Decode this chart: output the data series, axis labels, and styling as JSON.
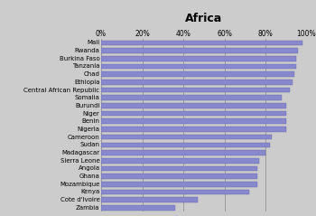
{
  "title": "Africa",
  "countries": [
    "Mali",
    "Rwanda",
    "Burkina Faso",
    "Tanzania",
    "Chad",
    "Ethiopia",
    "Central African Republic",
    "Somalia",
    "Burundi",
    "Niger",
    "Benin",
    "Nigeria",
    "Cameroon",
    "Sudan",
    "Madagascar",
    "Sierra Leone",
    "Angola",
    "Ghana",
    "Mozambique",
    "Kenya",
    "Cote d'Ivoire",
    "Zambia"
  ],
  "values": [
    98,
    96,
    95,
    95,
    94,
    93,
    92,
    88,
    90,
    90,
    90,
    90,
    83,
    82,
    80,
    77,
    76,
    76,
    76,
    72,
    47,
    36
  ],
  "bar_color": "#8888cc",
  "bar_edge_color": "#6666aa",
  "background_color": "#cccccc",
  "bar_height": 0.65,
  "xlim": [
    0,
    100
  ],
  "xtick_labels": [
    "0%",
    "20%",
    "40%",
    "60%",
    "80%",
    "100%"
  ],
  "xtick_values": [
    0,
    20,
    40,
    60,
    80,
    100
  ],
  "title_fontsize": 9,
  "tick_fontsize": 5.5,
  "label_fontsize": 5.0,
  "grid_color": "#888888",
  "grid_linewidth": 0.5
}
